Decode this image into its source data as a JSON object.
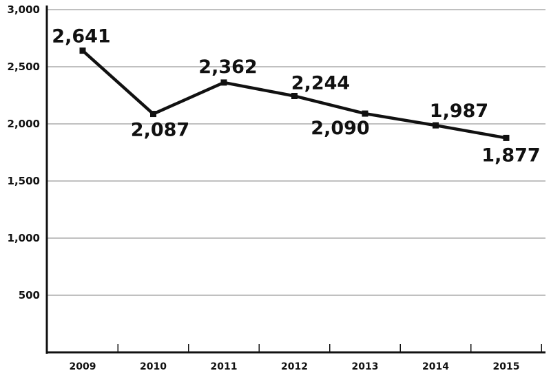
{
  "chart_data": {
    "type": "line",
    "title": "",
    "xlabel": "",
    "ylabel": "",
    "categories": [
      "2009",
      "2010",
      "2011",
      "2012",
      "2013",
      "2014",
      "2015"
    ],
    "series": [
      {
        "values": [
          2641,
          2087,
          2362,
          2244,
          2090,
          1987,
          1877
        ],
        "labels": [
          "2,641",
          "2,087",
          "2,362",
          "2,244",
          "2,090",
          "1,987",
          "1,877"
        ]
      }
    ],
    "ylim": [
      0,
      3000
    ],
    "yticks": [
      {
        "value": 500,
        "label": "500"
      },
      {
        "value": 1000,
        "label": "1,000"
      },
      {
        "value": 1500,
        "label": "1,500"
      },
      {
        "value": 2000,
        "label": "2,000"
      },
      {
        "value": 2500,
        "label": "2,500"
      },
      {
        "value": 3000,
        "label": "3,000"
      }
    ],
    "grid": true,
    "legend": "none",
    "colors": {
      "line": "#111111",
      "grid": "#9a9a9a",
      "axis": "#111111"
    }
  }
}
